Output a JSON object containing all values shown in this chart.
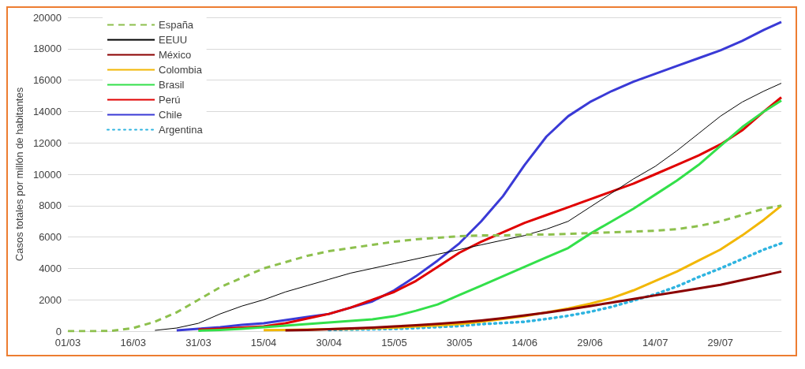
{
  "chart_data": {
    "type": "line",
    "ylabel": "Casos totales por millón de habitantes",
    "x": [
      "--03-01",
      "--03-06",
      "--03-11",
      "--03-16",
      "--03-21",
      "--03-26",
      "--03-31",
      "--04-05",
      "--04-10",
      "--04-15",
      "--04-20",
      "--04-25",
      "--04-30",
      "--05-05",
      "--05-10",
      "--05-15",
      "--05-20",
      "--05-25",
      "--05-30",
      "--06-04",
      "--06-09",
      "--06-14",
      "--06-19",
      "--06-24",
      "--06-29",
      "--07-04",
      "--07-09",
      "--07-14",
      "--07-19",
      "--07-24",
      "--07-29",
      "--08-03",
      "--08-08",
      "--08-12"
    ],
    "xlim": [
      "--03-01",
      "--08-12"
    ],
    "xticks": [
      {
        "value": "--03-01",
        "label": "01/03"
      },
      {
        "value": "--03-16",
        "label": "16/03"
      },
      {
        "value": "--03-31",
        "label": "31/03"
      },
      {
        "value": "--04-15",
        "label": "15/04"
      },
      {
        "value": "--04-30",
        "label": "30/04"
      },
      {
        "value": "--05-15",
        "label": "15/05"
      },
      {
        "value": "--05-30",
        "label": "30/05"
      },
      {
        "value": "--06-14",
        "label": "14/06"
      },
      {
        "value": "--06-29",
        "label": "29/06"
      },
      {
        "value": "--07-14",
        "label": "14/07"
      },
      {
        "value": "--07-29",
        "label": "29/07"
      }
    ],
    "ylim": [
      0,
      20000
    ],
    "yticks": [
      0,
      2000,
      4000,
      6000,
      8000,
      10000,
      12000,
      14000,
      16000,
      18000,
      20000
    ],
    "grid": "y",
    "legend": "top left",
    "marker": "none",
    "series": [
      {
        "name": "España",
        "color": "#8dc04d",
        "line_style": "dashed",
        "values": [
          0,
          0,
          20,
          200,
          600,
          1200,
          2000,
          2800,
          3400,
          4000,
          4400,
          4800,
          5100,
          5300,
          5500,
          5700,
          5850,
          5950,
          6050,
          6100,
          6100,
          6150,
          6150,
          6200,
          6250,
          6300,
          6350,
          6400,
          6500,
          6700,
          7000,
          7400,
          7800,
          8000
        ]
      },
      {
        "name": "EEUU",
        "color": "#000000",
        "line_style": "solid",
        "values": [
          null,
          null,
          null,
          null,
          50,
          200,
          500,
          1100,
          1600,
          2000,
          2500,
          2900,
          3300,
          3700,
          4000,
          4300,
          4600,
          4900,
          5200,
          5500,
          5800,
          6100,
          6500,
          7000,
          7900,
          8800,
          9700,
          10500,
          11500,
          12600,
          13700,
          14600,
          15300,
          15800
        ]
      },
      {
        "name": "México",
        "color": "#8b0000",
        "line_style": "solid",
        "values": [
          null,
          null,
          null,
          null,
          null,
          null,
          null,
          null,
          null,
          null,
          50,
          80,
          120,
          170,
          230,
          300,
          380,
          460,
          560,
          680,
          830,
          1000,
          1180,
          1380,
          1600,
          1820,
          2050,
          2280,
          2500,
          2730,
          2950,
          3250,
          3550,
          3800
        ]
      },
      {
        "name": "Colombia",
        "color": "#f2b705",
        "line_style": "solid",
        "values": [
          null,
          null,
          null,
          null,
          null,
          null,
          null,
          null,
          null,
          60,
          80,
          100,
          120,
          150,
          190,
          230,
          300,
          370,
          450,
          600,
          780,
          950,
          1200,
          1450,
          1750,
          2100,
          2600,
          3200,
          3800,
          4500,
          5200,
          6100,
          7100,
          8000
        ]
      },
      {
        "name": "Brasil",
        "color": "#33e04a",
        "line_style": "solid",
        "values": [
          null,
          null,
          null,
          null,
          null,
          null,
          30,
          80,
          150,
          250,
          350,
          450,
          550,
          650,
          750,
          950,
          1300,
          1700,
          2300,
          2900,
          3500,
          4100,
          4700,
          5300,
          6200,
          7000,
          7800,
          8700,
          9600,
          10600,
          11800,
          13000,
          14000,
          14700
        ]
      },
      {
        "name": "Perú",
        "color": "#e00000",
        "line_style": "solid",
        "values": [
          null,
          null,
          null,
          null,
          null,
          null,
          100,
          150,
          220,
          300,
          500,
          800,
          1100,
          1500,
          2000,
          2500,
          3200,
          4100,
          5000,
          5700,
          6300,
          6900,
          7400,
          7900,
          8400,
          8900,
          9400,
          10000,
          10600,
          11200,
          11900,
          12800,
          14000,
          14900
        ]
      },
      {
        "name": "Chile",
        "color": "#3a3ad6",
        "line_style": "solid",
        "values": [
          null,
          null,
          null,
          null,
          null,
          50,
          150,
          250,
          400,
          500,
          700,
          900,
          1100,
          1500,
          1900,
          2600,
          3500,
          4500,
          5600,
          7000,
          8600,
          10600,
          12400,
          13700,
          14600,
          15300,
          15900,
          16400,
          16900,
          17400,
          17900,
          18500,
          19200,
          19700
        ]
      },
      {
        "name": "Argentina",
        "color": "#2fb4e0",
        "line_style": "dotted",
        "values": [
          null,
          null,
          null,
          null,
          null,
          null,
          null,
          null,
          null,
          null,
          null,
          null,
          80,
          100,
          120,
          150,
          200,
          260,
          330,
          450,
          520,
          600,
          780,
          980,
          1230,
          1550,
          1950,
          2350,
          2850,
          3450,
          4000,
          4600,
          5200,
          5600
        ]
      }
    ]
  }
}
